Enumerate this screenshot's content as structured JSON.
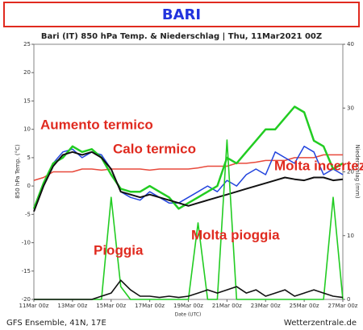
{
  "chart_data": {
    "type": "line",
    "header": "BARI",
    "title": "Bari  (IT)  850 hPa Temp. & Niederschlag | Thu, 11Mar2021 00Z",
    "ylabel": "850 hPa Temp. (°C)",
    "y2label": "Niederschlag (mm)",
    "xlabel": "Date (UTC)",
    "footer_left": "GFS Ensemble, 41N, 17E",
    "footer_right": "Wetterzentrale.de",
    "annotations": [
      "Aumento termico",
      "Calo termico",
      "Molta incertezza",
      "Pioggia",
      "Molta pioggia"
    ],
    "x": [
      0,
      0.5,
      1,
      1.5,
      2,
      2.5,
      3,
      3.5,
      4,
      4.5,
      5,
      5.5,
      6,
      6.5,
      7,
      7.5,
      8,
      8.5,
      9,
      9.5,
      10,
      10.5,
      11,
      11.5,
      12,
      12.5,
      13,
      13.5,
      14,
      14.5,
      15,
      15.5,
      16
    ],
    "xlim": [
      0,
      16
    ],
    "xticks": [
      {
        "value": 0,
        "label": "11Mar 00z"
      },
      {
        "value": 2,
        "label": "13Mar 00z"
      },
      {
        "value": 4,
        "label": "15Mar 00z"
      },
      {
        "value": 6,
        "label": "17Mar 00z"
      },
      {
        "value": 8,
        "label": "19Mar 00z"
      },
      {
        "value": 10,
        "label": "21Mar 00z"
      },
      {
        "value": 12,
        "label": "23Mar 00z"
      },
      {
        "value": 14,
        "label": "25Mar 00z"
      },
      {
        "value": 16,
        "label": "27Mar 00z"
      }
    ],
    "ylim": [
      -20,
      25
    ],
    "yticks": [
      -20,
      -15,
      -10,
      -5,
      0,
      5,
      10,
      15,
      20,
      25
    ],
    "y2lim": [
      0,
      40
    ],
    "y2ticks": [
      0,
      10,
      20,
      30,
      40
    ],
    "grid": false,
    "series": [
      {
        "color": "#e8493b",
        "values": [
          1,
          1.5,
          2.5,
          2.5,
          2.5,
          3,
          3,
          2.8,
          3,
          3,
          3,
          3,
          2.8,
          3,
          3,
          3,
          3,
          3.2,
          3.5,
          3.5,
          3.5,
          4,
          4,
          4.2,
          4.5,
          4.5,
          4.5,
          5,
          5,
          5,
          5.5,
          5.5,
          5.5
        ]
      },
      {
        "color": "#2244dd",
        "values": [
          -4,
          0,
          4,
          6,
          6.5,
          5,
          6,
          5.5,
          3,
          -1,
          -2,
          -2.5,
          -1,
          -2,
          -3,
          -3,
          -2,
          -1,
          0,
          -1,
          1,
          0,
          2,
          3,
          2,
          6,
          5,
          4,
          7,
          6,
          2,
          3,
          2
        ]
      },
      {
        "color": "#22cc22",
        "values": [
          -4,
          0.5,
          4,
          5,
          7,
          6,
          6.5,
          5,
          2,
          -0.5,
          -1,
          -1,
          0,
          -1,
          -2,
          -4,
          -3,
          -2,
          -1,
          0,
          5,
          4,
          6,
          8,
          10,
          10,
          12,
          14,
          13,
          8,
          7,
          3,
          4
        ]
      },
      {
        "color": "#111111",
        "values": [
          -4.5,
          0,
          3.5,
          5.5,
          6,
          5.5,
          6,
          5,
          3,
          -1,
          -1.5,
          -2,
          -1.5,
          -2,
          -2.5,
          -3,
          -3.5,
          -3,
          -2.5,
          -2,
          -1.5,
          -1,
          -0.5,
          0,
          0.5,
          1,
          1.5,
          1.2,
          1,
          1.5,
          1.5,
          1,
          1.2
        ]
      },
      {
        "color": "#22cc22",
        "axis": "y2",
        "values": [
          0,
          0,
          0,
          0,
          0,
          0,
          0,
          0,
          16,
          2,
          0,
          0,
          0,
          0,
          0,
          0,
          0,
          12,
          0,
          0,
          25,
          0,
          0,
          0,
          0,
          0,
          0,
          0,
          0,
          0,
          0,
          16,
          0
        ]
      },
      {
        "color": "#111111",
        "axis": "y2",
        "values": [
          0,
          0,
          0,
          0,
          0,
          0,
          0,
          0.5,
          1,
          3,
          1.5,
          0.5,
          0.5,
          0.3,
          0.5,
          0.3,
          0.5,
          1,
          1.5,
          1,
          1.5,
          2,
          1,
          1.5,
          0.5,
          1,
          1.5,
          0.5,
          1,
          1.5,
          1,
          0.5,
          0.3
        ]
      }
    ]
  }
}
